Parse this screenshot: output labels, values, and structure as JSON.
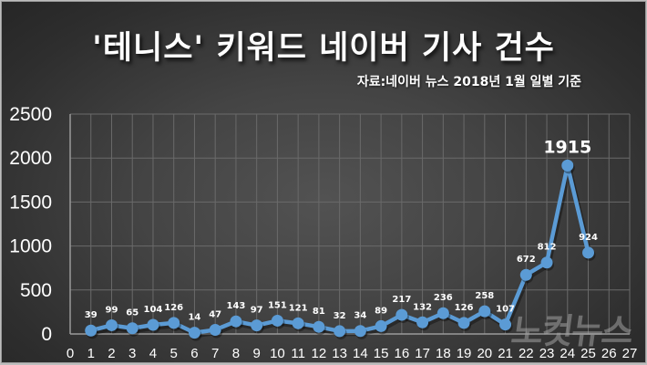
{
  "header": {
    "title": "'테니스' 키워드 네이버 기사 건수",
    "subtitle": "자료:네이버 뉴스 2018년 1월 일별 기준"
  },
  "watermark": "노컷뉴스",
  "colors": {
    "line": "#5b9bd5",
    "background": "#3a3a3a",
    "grid": "#6a6a6a",
    "text": "#ffffff"
  },
  "chart_data": {
    "type": "line",
    "title": "'테니스' 키워드 네이버 기사 건수",
    "subtitle": "자료:네이버 뉴스 2018년 1월 일별 기준",
    "xlabel": "",
    "ylabel": "",
    "x": [
      1,
      2,
      3,
      4,
      5,
      6,
      7,
      8,
      9,
      10,
      11,
      12,
      13,
      14,
      15,
      16,
      17,
      18,
      19,
      20,
      21,
      22,
      23,
      24,
      25
    ],
    "series": [
      {
        "name": "기사 건수",
        "values": [
          39,
          99,
          65,
          104,
          126,
          14,
          47,
          143,
          97,
          151,
          121,
          81,
          32,
          34,
          89,
          217,
          132,
          236,
          126,
          258,
          107,
          672,
          812,
          1915,
          924
        ]
      }
    ],
    "xlim": [
      0,
      27
    ],
    "ylim": [
      0,
      2500
    ],
    "x_ticks": [
      "0",
      "1",
      "2",
      "3",
      "4",
      "5",
      "6",
      "7",
      "8",
      "9",
      "10",
      "11",
      "12",
      "13",
      "14",
      "15",
      "16",
      "17",
      "18",
      "19",
      "20",
      "21",
      "22",
      "23",
      "24",
      "25",
      "26",
      "27"
    ],
    "y_ticks": [
      "0",
      "500",
      "1000",
      "1500",
      "2000",
      "2500"
    ],
    "grid": true,
    "legend": null,
    "annotations": [
      {
        "x": 24,
        "text": "1915",
        "emphasis": "large"
      }
    ]
  }
}
